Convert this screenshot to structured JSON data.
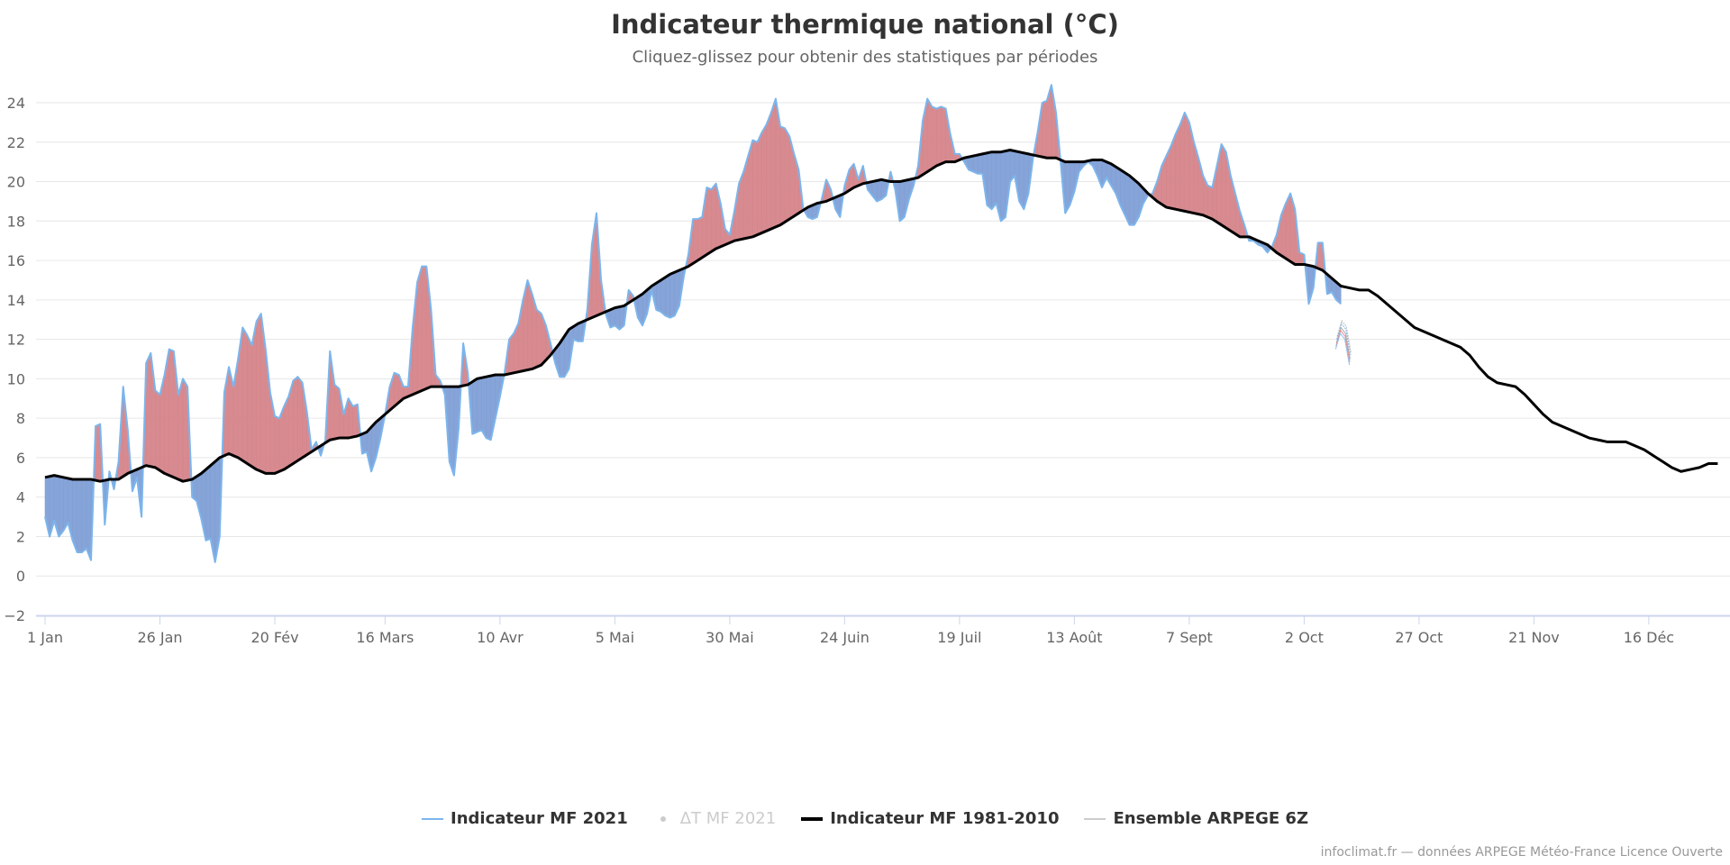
{
  "title": "Indicateur thermique national (°C)",
  "subtitle": "Cliquez-glissez pour obtenir des statistiques par périodes",
  "credits": "infoclimat.fr — données ARPEGE Météo-France Licence Ouverte",
  "colors": {
    "above": "#d5858a",
    "below": "#7f9fd6",
    "observed_line": "#7cb5ec",
    "normal_line": "#000000",
    "grid": "#e6e6e6",
    "axis": "#ccd6eb"
  },
  "legend": [
    {
      "label": "Indicateur MF 2021",
      "symbol": "line",
      "color": "#7cb5ec",
      "hidden": false
    },
    {
      "label": "ΔT MF 2021",
      "symbol": "dot",
      "color": "#cccccc",
      "hidden": true
    },
    {
      "label": "Indicateur MF 1981-2010",
      "symbol": "thick-line",
      "color": "#000000",
      "hidden": false
    },
    {
      "label": "Ensemble ARPEGE 6Z",
      "symbol": "line",
      "color": "#cccccc",
      "hidden": false
    }
  ],
  "chart_data": {
    "type": "area",
    "title": "Indicateur thermique national (°C)",
    "xlabel": "",
    "ylabel": "",
    "ylim": [
      -2,
      25
    ],
    "xlim_days": [
      0,
      364
    ],
    "yticks": [
      -2,
      0,
      2,
      4,
      6,
      8,
      10,
      12,
      14,
      16,
      18,
      20,
      22,
      24
    ],
    "xticks": [
      {
        "day": 0,
        "label": "1 Jan"
      },
      {
        "day": 25,
        "label": "26 Jan"
      },
      {
        "day": 50,
        "label": "20 Fév"
      },
      {
        "day": 74,
        "label": "16 Mars"
      },
      {
        "day": 99,
        "label": "10 Avr"
      },
      {
        "day": 124,
        "label": "5 Mai"
      },
      {
        "day": 149,
        "label": "30 Mai"
      },
      {
        "day": 174,
        "label": "24 Juin"
      },
      {
        "day": 199,
        "label": "19 Juil"
      },
      {
        "day": 224,
        "label": "13 Août"
      },
      {
        "day": 249,
        "label": "7 Sept"
      },
      {
        "day": 274,
        "label": "2 Oct"
      },
      {
        "day": 299,
        "label": "27 Oct"
      },
      {
        "day": 324,
        "label": "21 Nov"
      },
      {
        "day": 349,
        "label": "16 Déc"
      }
    ],
    "grid": true,
    "legend_position": "bottom",
    "series": [
      {
        "name": "Indicateur MF 1981-2010",
        "x_days": [
          0,
          2,
          4,
          6,
          8,
          10,
          12,
          14,
          16,
          18,
          20,
          22,
          24,
          26,
          28,
          30,
          32,
          34,
          36,
          38,
          40,
          42,
          44,
          46,
          48,
          50,
          52,
          54,
          56,
          58,
          60,
          62,
          64,
          66,
          68,
          70,
          72,
          74,
          76,
          78,
          80,
          82,
          84,
          86,
          88,
          90,
          92,
          94,
          96,
          98,
          100,
          102,
          104,
          106,
          108,
          110,
          112,
          114,
          116,
          118,
          120,
          122,
          124,
          126,
          128,
          130,
          132,
          134,
          136,
          138,
          140,
          142,
          144,
          146,
          148,
          150,
          152,
          154,
          156,
          158,
          160,
          162,
          164,
          166,
          168,
          170,
          172,
          174,
          176,
          178,
          180,
          182,
          184,
          186,
          188,
          190,
          192,
          194,
          196,
          198,
          200,
          202,
          204,
          206,
          208,
          210,
          212,
          214,
          216,
          218,
          220,
          222,
          224,
          226,
          228,
          230,
          232,
          234,
          236,
          238,
          240,
          242,
          244,
          246,
          248,
          250,
          252,
          254,
          256,
          258,
          260,
          262,
          264,
          266,
          268,
          270,
          272,
          274,
          276,
          278,
          280,
          282,
          284,
          286,
          288,
          290,
          292,
          294,
          296,
          298,
          300,
          302,
          304,
          306,
          308,
          310,
          312,
          314,
          316,
          318,
          320,
          322,
          324,
          326,
          328,
          330,
          332,
          334,
          336,
          338,
          340,
          342,
          344,
          346,
          348,
          350,
          352,
          354,
          356,
          358,
          360,
          362,
          364
        ],
        "values": [
          5.0,
          5.1,
          5.0,
          4.9,
          4.9,
          4.9,
          4.8,
          4.9,
          4.9,
          5.2,
          5.4,
          5.6,
          5.5,
          5.2,
          5.0,
          4.8,
          4.9,
          5.2,
          5.6,
          6.0,
          6.2,
          6.0,
          5.7,
          5.4,
          5.2,
          5.2,
          5.4,
          5.7,
          6.0,
          6.3,
          6.6,
          6.9,
          7.0,
          7.0,
          7.1,
          7.3,
          7.8,
          8.2,
          8.6,
          9.0,
          9.2,
          9.4,
          9.6,
          9.6,
          9.6,
          9.6,
          9.7,
          10.0,
          10.1,
          10.2,
          10.2,
          10.3,
          10.4,
          10.5,
          10.7,
          11.2,
          11.8,
          12.5,
          12.8,
          13.0,
          13.2,
          13.4,
          13.6,
          13.7,
          14.0,
          14.3,
          14.7,
          15.0,
          15.3,
          15.5,
          15.7,
          16.0,
          16.3,
          16.6,
          16.8,
          17.0,
          17.1,
          17.2,
          17.4,
          17.6,
          17.8,
          18.1,
          18.4,
          18.7,
          18.9,
          19.0,
          19.2,
          19.4,
          19.7,
          19.9,
          20.0,
          20.1,
          20.0,
          20.0,
          20.1,
          20.2,
          20.5,
          20.8,
          21.0,
          21.0,
          21.2,
          21.3,
          21.4,
          21.5,
          21.5,
          21.6,
          21.5,
          21.4,
          21.3,
          21.2,
          21.2,
          21.0,
          21.0,
          21.0,
          21.1,
          21.1,
          20.9,
          20.6,
          20.3,
          19.9,
          19.4,
          19.0,
          18.7,
          18.6,
          18.5,
          18.4,
          18.3,
          18.1,
          17.8,
          17.5,
          17.2,
          17.2,
          17.0,
          16.8,
          16.4,
          16.1,
          15.8,
          15.8,
          15.7,
          15.5,
          15.1,
          14.7,
          14.6,
          14.5,
          14.5,
          14.2,
          13.8,
          13.4,
          13.0,
          12.6,
          12.4,
          12.2,
          12.0,
          11.8,
          11.6,
          11.2,
          10.6,
          10.1,
          9.8,
          9.7,
          9.6,
          9.2,
          8.7,
          8.2,
          7.8,
          7.6,
          7.4,
          7.2,
          7.0,
          6.9,
          6.8,
          6.8,
          6.8,
          6.6,
          6.4,
          6.1,
          5.8,
          5.5,
          5.3,
          5.4,
          5.5,
          5.7,
          5.7,
          5.6,
          5.4,
          5.2,
          5.1,
          4.9,
          5.0
        ]
      },
      {
        "name": "Indicateur MF 2021",
        "x_days": [
          0,
          1,
          2,
          3,
          4,
          5,
          6,
          7,
          8,
          9,
          10,
          11,
          12,
          13,
          14,
          15,
          16,
          17,
          18,
          19,
          20,
          21,
          22,
          23,
          24,
          25,
          26,
          27,
          28,
          29,
          30,
          31,
          32,
          33,
          34,
          35,
          36,
          37,
          38,
          39,
          40,
          41,
          42,
          43,
          44,
          45,
          46,
          47,
          48,
          49,
          50,
          51,
          52,
          53,
          54,
          55,
          56,
          57,
          58,
          59,
          60,
          61,
          62,
          63,
          64,
          65,
          66,
          67,
          68,
          69,
          70,
          71,
          72,
          73,
          74,
          75,
          76,
          77,
          78,
          79,
          80,
          81,
          82,
          83,
          84,
          85,
          86,
          87,
          88,
          89,
          90,
          91,
          92,
          93,
          94,
          95,
          96,
          97,
          98,
          99,
          100,
          101,
          102,
          103,
          104,
          105,
          106,
          107,
          108,
          109,
          110,
          111,
          112,
          113,
          114,
          115,
          116,
          117,
          118,
          119,
          120,
          121,
          122,
          123,
          124,
          125,
          126,
          127,
          128,
          129,
          130,
          131,
          132,
          133,
          134,
          135,
          136,
          137,
          138,
          139,
          140,
          141,
          142,
          143,
          144,
          145,
          146,
          147,
          148,
          149,
          150,
          151,
          152,
          153,
          154,
          155,
          156,
          157,
          158,
          159,
          160,
          161,
          162,
          163,
          164,
          165,
          166,
          167,
          168,
          169,
          170,
          171,
          172,
          173,
          174,
          175,
          176,
          177,
          178,
          179,
          180,
          181,
          182,
          183,
          184,
          185,
          186,
          187,
          188,
          189,
          190,
          191,
          192,
          193,
          194,
          195,
          196,
          197,
          198,
          199,
          200,
          201,
          202,
          203,
          204,
          205,
          206,
          207,
          208,
          209,
          210,
          211,
          212,
          213,
          214,
          215,
          216,
          217,
          218,
          219,
          220,
          221,
          222,
          223,
          224,
          225,
          226,
          227,
          228,
          229,
          230,
          231,
          232,
          233,
          234,
          235,
          236,
          237,
          238,
          239,
          240,
          241,
          242,
          243,
          244,
          245,
          246,
          247,
          248,
          249,
          250,
          251,
          252,
          253,
          254,
          255,
          256,
          257,
          258,
          259,
          260,
          261,
          262,
          263,
          264,
          265,
          266,
          267,
          268,
          269,
          270,
          271,
          272,
          273,
          274,
          275,
          276,
          277,
          278,
          279,
          280,
          281,
          282
        ],
        "values": [
          3.0,
          2.0,
          2.8,
          2.0,
          2.3,
          2.7,
          1.8,
          1.2,
          1.2,
          1.4,
          0.8,
          7.6,
          7.7,
          2.6,
          5.3,
          4.4,
          5.8,
          9.6,
          7.4,
          4.3,
          5.0,
          3.0,
          10.8,
          11.3,
          9.4,
          9.2,
          10.2,
          11.5,
          11.4,
          9.2,
          10.0,
          9.6,
          4.0,
          3.8,
          2.9,
          1.8,
          1.9,
          0.7,
          2.0,
          9.3,
          10.6,
          9.6,
          11.0,
          12.6,
          12.2,
          11.7,
          12.9,
          13.3,
          11.5,
          9.3,
          8.1,
          8.0,
          8.6,
          9.1,
          9.9,
          10.1,
          9.8,
          8.3,
          6.4,
          6.8,
          6.1,
          6.9,
          11.4,
          9.7,
          9.5,
          8.2,
          9.0,
          8.6,
          8.7,
          6.2,
          6.3,
          5.3,
          6.0,
          7.0,
          8.2,
          9.6,
          10.3,
          10.2,
          9.6,
          9.6,
          12.6,
          14.9,
          15.7,
          15.7,
          13.5,
          10.2,
          9.9,
          9.2,
          5.8,
          5.1,
          7.5,
          11.8,
          10.3,
          7.2,
          7.3,
          7.4,
          7.0,
          6.9,
          8.0,
          9.1,
          10.3,
          12.0,
          12.3,
          12.8,
          14.0,
          15.0,
          14.3,
          13.5,
          13.3,
          12.7,
          11.8,
          10.8,
          10.1,
          10.1,
          10.5,
          12.0,
          11.9,
          11.9,
          13.5,
          16.8,
          18.4,
          15.0,
          13.3,
          12.6,
          12.7,
          12.5,
          12.7,
          14.5,
          14.2,
          13.1,
          12.7,
          13.3,
          14.5,
          13.5,
          13.4,
          13.2,
          13.1,
          13.2,
          13.7,
          15.2,
          16.3,
          18.1,
          18.1,
          18.2,
          19.7,
          19.6,
          19.9,
          18.9,
          17.6,
          17.3,
          18.5,
          19.9,
          20.5,
          21.3,
          22.1,
          22.0,
          22.5,
          22.9,
          23.5,
          24.2,
          22.8,
          22.7,
          22.3,
          21.4,
          20.6,
          18.6,
          18.2,
          18.1,
          18.2,
          19.1,
          20.1,
          19.6,
          18.6,
          18.2,
          19.8,
          20.6,
          20.9,
          20.1,
          20.8,
          19.6,
          19.3,
          19.0,
          19.1,
          19.3,
          20.5,
          19.6,
          18.0,
          18.2,
          19.1,
          19.8,
          20.8,
          23.1,
          24.2,
          23.8,
          23.7,
          23.8,
          23.7,
          22.4,
          21.4,
          21.4,
          21.0,
          20.6,
          20.5,
          20.4,
          20.4,
          18.8,
          18.6,
          18.9,
          18.0,
          18.2,
          20.0,
          20.3,
          19.0,
          18.6,
          19.4,
          21.2,
          22.5,
          24.0,
          24.1,
          24.9,
          23.5,
          21.0,
          18.4,
          18.8,
          19.5,
          20.5,
          20.8,
          21.0,
          20.8,
          20.3,
          19.7,
          20.2,
          19.8,
          19.4,
          18.8,
          18.3,
          17.8,
          17.8,
          18.2,
          18.9,
          19.3,
          19.4,
          20.0,
          20.8,
          21.3,
          21.8,
          22.4,
          22.9,
          23.5,
          23.0,
          22.0,
          21.2,
          20.3,
          19.8,
          19.7,
          20.8,
          21.9,
          21.5,
          20.3,
          19.4,
          18.5,
          17.8,
          17.0,
          17.0,
          16.8,
          16.7,
          16.4,
          16.7,
          17.3,
          18.3,
          18.9,
          19.4,
          18.6,
          16.4,
          16.3,
          13.8,
          14.6,
          16.9,
          16.9,
          14.3,
          14.4,
          14.0,
          13.8,
          13.6,
          12.0,
          12.4
        ]
      },
      {
        "name": "Ensemble ARPEGE 6Z",
        "x_days": [
          281,
          282,
          283,
          284
        ],
        "values": [
          11.8,
          12.6,
          12.3,
          11.0
        ]
      }
    ]
  }
}
